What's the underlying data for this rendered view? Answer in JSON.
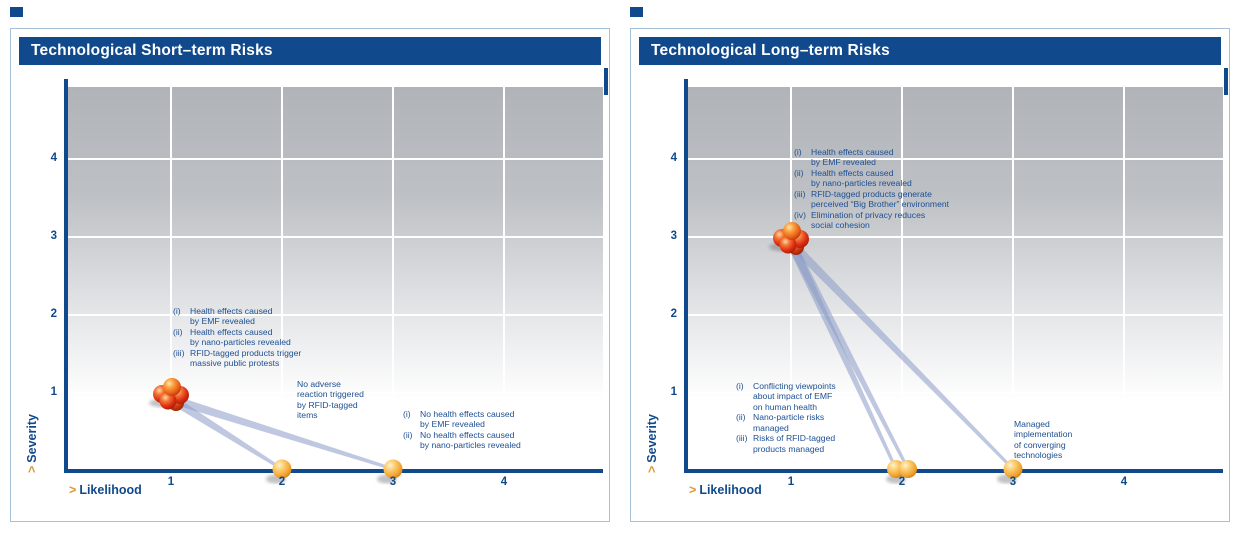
{
  "colors": {
    "navy": "#10498c",
    "panel_border": "#a6c0d8",
    "note_blue": "#1d4f92",
    "arrow_gold": "#d8973a",
    "transition_line": "#8a9ac6",
    "grid_line": "#ffffff",
    "gradient_top": "#b0b4b8",
    "red_bubble": "#dd2f12",
    "orange_bubble": "#f0a02c"
  },
  "chart_data": [
    {
      "type": "bubble",
      "title": "Technological Short–term Risks",
      "xlabel": "Likelihood",
      "ylabel": "Severity",
      "axis_arrow": ">",
      "x_ticks": [
        "1",
        "2",
        "3",
        "4"
      ],
      "y_ticks": [
        "1",
        "2",
        "3",
        "4"
      ],
      "xlim": [
        0,
        5
      ],
      "ylim": [
        0,
        5
      ],
      "grid": true,
      "points": [
        {
          "x": 1,
          "y": 1,
          "style": "cluster",
          "color": "red",
          "label_ref": 0
        },
        {
          "x": 2,
          "y": 0,
          "style": "single",
          "color": "orange",
          "label_ref": 1
        },
        {
          "x": 3,
          "y": 0,
          "style": "single",
          "color": "orange",
          "label_ref": 2
        }
      ],
      "transitions": [
        {
          "from": 0,
          "to": 1
        },
        {
          "from": 0,
          "to": 2
        }
      ],
      "annotations": [
        {
          "anchor": "risk-cluster",
          "items": [
            {
              "prefix": "(i)",
              "text": "Health effects caused\nby EMF revealed"
            },
            {
              "prefix": "(ii)",
              "text": "Health effects caused\nby nano-particles revealed"
            },
            {
              "prefix": "(iii)",
              "text": "RFID-tagged products trigger\nmassive public protests"
            }
          ]
        },
        {
          "anchor": "likelihood-2",
          "items": [
            {
              "prefix": "",
              "text": "No adverse\nreaction triggered\nby RFID-tagged\nitems"
            }
          ]
        },
        {
          "anchor": "likelihood-3",
          "items": [
            {
              "prefix": "(i)",
              "text": "No health effects caused\nby EMF revealed"
            },
            {
              "prefix": "(ii)",
              "text": "No health effects caused\nby nano-particles revealed"
            }
          ]
        }
      ]
    },
    {
      "type": "bubble",
      "title": "Technological Long–term Risks",
      "xlabel": "Likelihood",
      "ylabel": "Severity",
      "axis_arrow": ">",
      "x_ticks": [
        "1",
        "2",
        "3",
        "4"
      ],
      "y_ticks": [
        "1",
        "2",
        "3",
        "4"
      ],
      "xlim": [
        0,
        5
      ],
      "ylim": [
        0,
        5
      ],
      "grid": true,
      "points": [
        {
          "x": 1,
          "y": 3,
          "style": "cluster",
          "color": "red",
          "label_ref": 0
        },
        {
          "x": 2,
          "y": 0,
          "style": "pair",
          "color": "orange",
          "label_ref": 1
        },
        {
          "x": 3,
          "y": 0,
          "style": "single",
          "color": "orange",
          "label_ref": 2
        }
      ],
      "transitions": [
        {
          "from": 0,
          "to": 1
        },
        {
          "from": 0,
          "to": 2
        }
      ],
      "annotations": [
        {
          "anchor": "risk-cluster",
          "items": [
            {
              "prefix": "(i)",
              "text": "Health effects caused\nby EMF revealed"
            },
            {
              "prefix": "(ii)",
              "text": "Health effects caused\nby nano-particles revealed"
            },
            {
              "prefix": "(iii)",
              "text": "RFID-tagged products generate\nperceived “Big Brother” environment"
            },
            {
              "prefix": "(iv)",
              "text": "Elimination of privacy reduces\nsocial cohesion"
            }
          ]
        },
        {
          "anchor": "likelihood-2",
          "items": [
            {
              "prefix": "(i)",
              "text": "Conflicting viewpoints\nabout impact of EMF\non human health"
            },
            {
              "prefix": "(ii)",
              "text": "Nano-particle risks\nmanaged"
            },
            {
              "prefix": "(iii)",
              "text": "Risks of RFID-tagged\nproducts managed"
            }
          ]
        },
        {
          "anchor": "likelihood-3",
          "items": [
            {
              "prefix": "",
              "text": "Managed\nimplementation\nof converging\ntechnologies"
            }
          ]
        }
      ]
    }
  ]
}
